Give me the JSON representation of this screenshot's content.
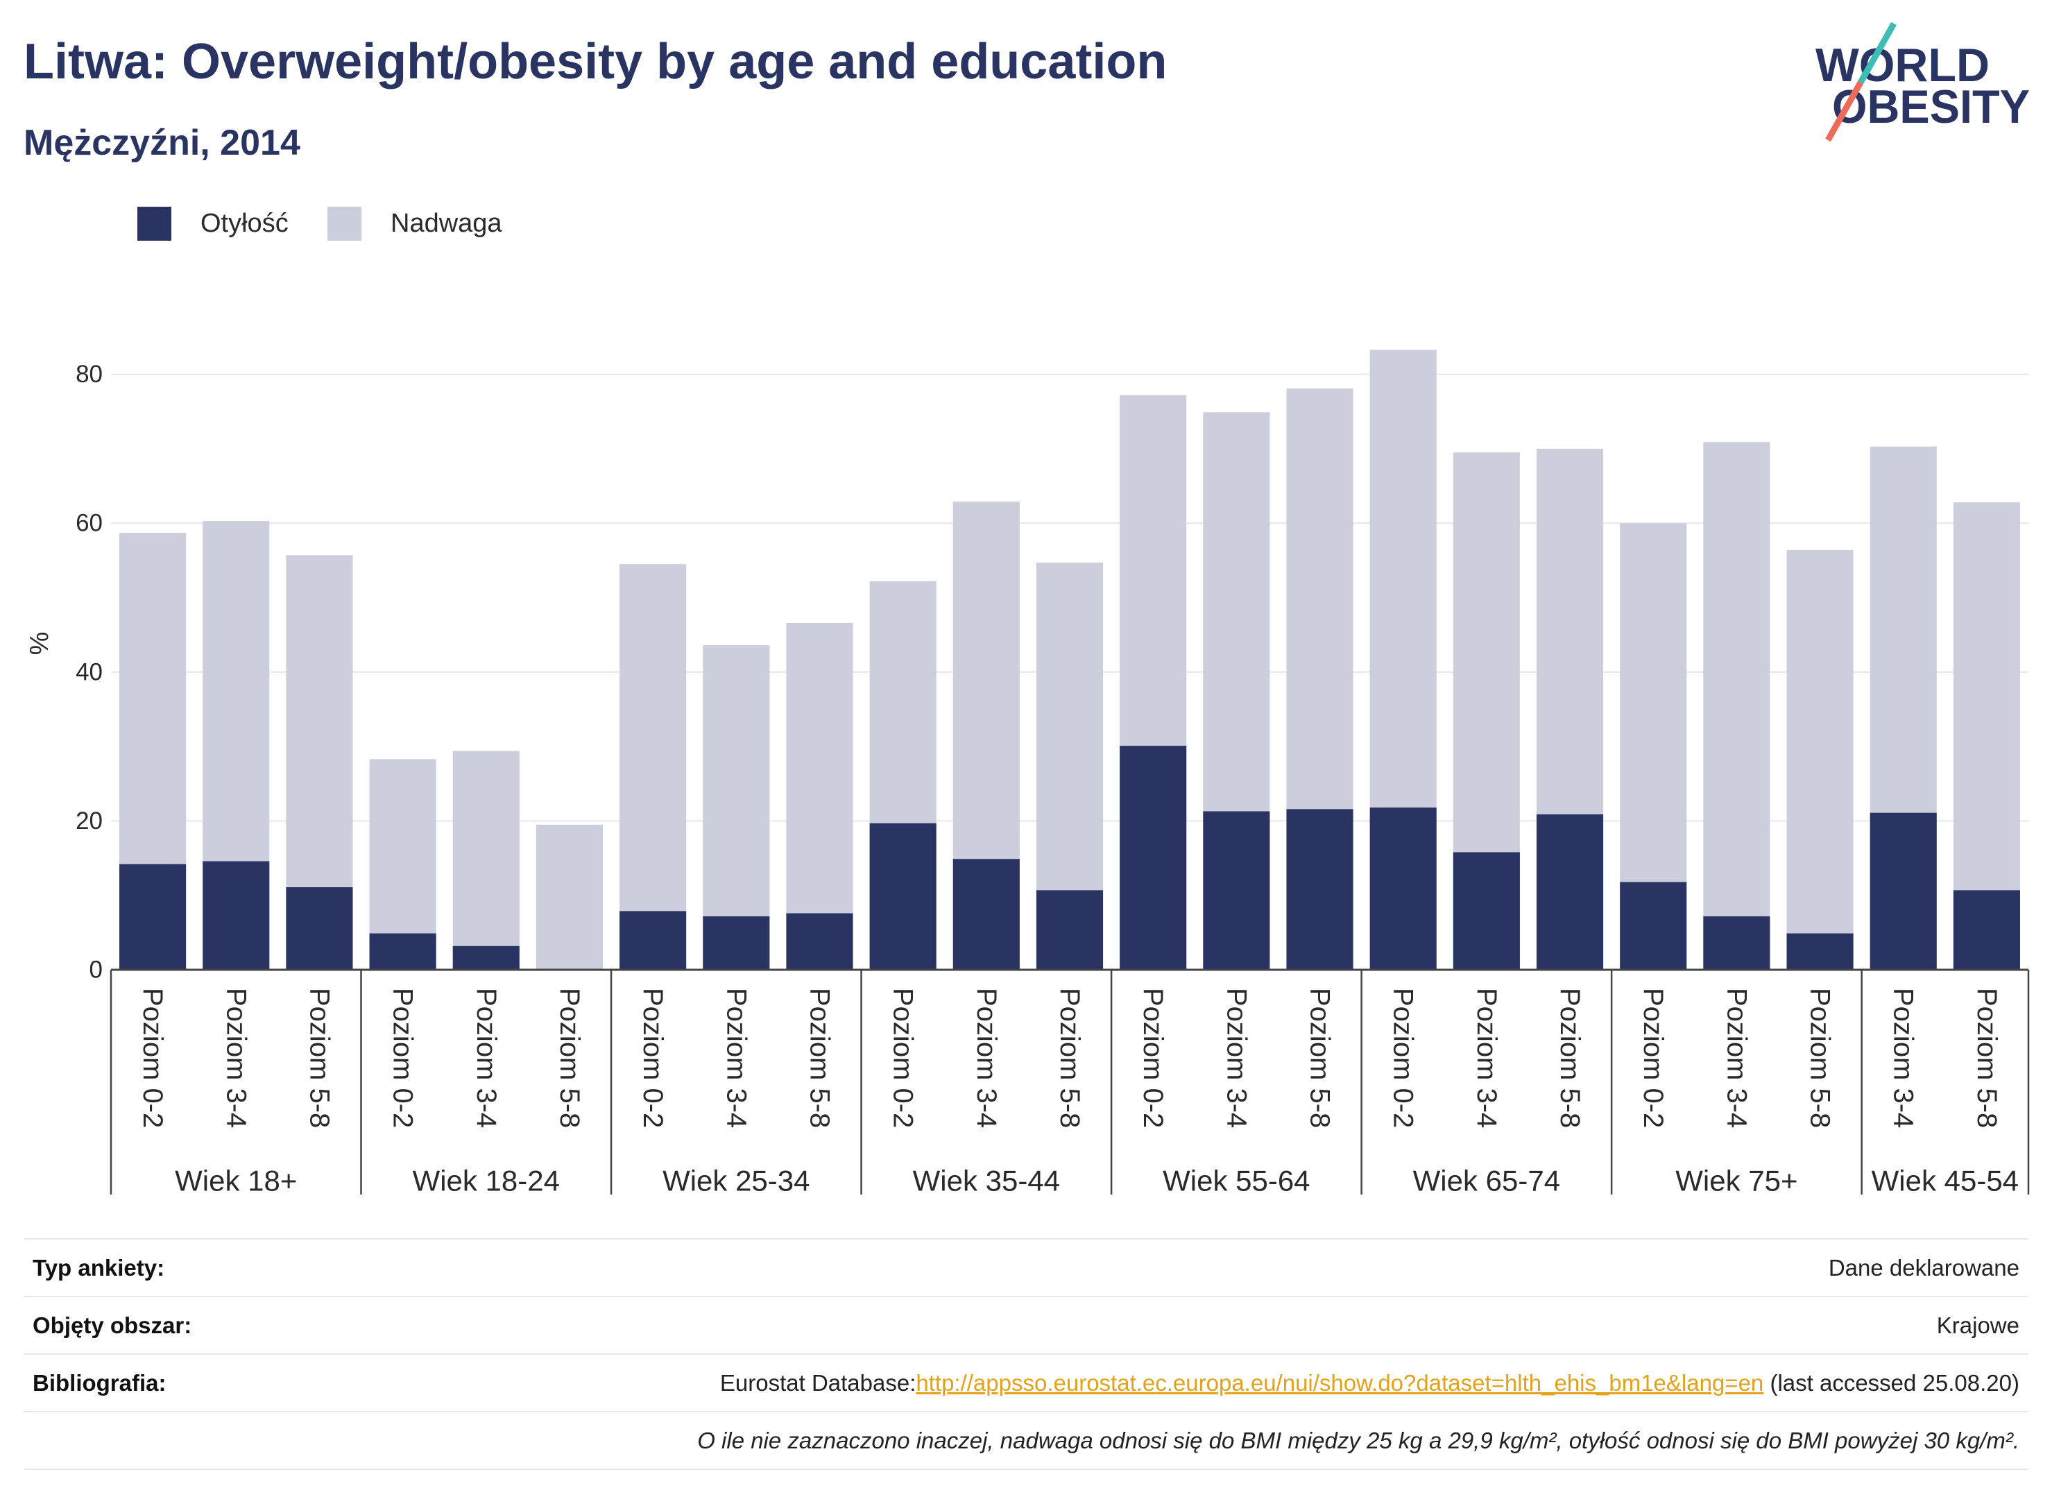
{
  "colors": {
    "primary": "#293462",
    "link": "#e3a21a",
    "logo_slash_top": "#3dbdb6",
    "logo_slash_bottom": "#ee6a5a"
  },
  "logo": {
    "line1": "WORLD",
    "line2": "OBESITY"
  },
  "chart_data": {
    "type": "bar",
    "barmode": "stack",
    "title": "Litwa: Overweight/obesity by age and education",
    "subtitle": "Mężczyźni, 2014",
    "ylabel": "%",
    "ylim": [
      0,
      87.7
    ],
    "yticks": [
      0,
      20,
      40,
      60,
      80
    ],
    "grid": true,
    "legend": "top-left",
    "groups": [
      {
        "label": "Wiek 18+",
        "levels": [
          "Poziom 0-2",
          "Poziom 3-4",
          "Poziom 5-8"
        ]
      },
      {
        "label": "Wiek 18-24",
        "levels": [
          "Poziom 0-2",
          "Poziom 3-4",
          "Poziom 5-8"
        ]
      },
      {
        "label": "Wiek 25-34",
        "levels": [
          "Poziom 0-2",
          "Poziom 3-4",
          "Poziom 5-8"
        ]
      },
      {
        "label": "Wiek 35-44",
        "levels": [
          "Poziom 0-2",
          "Poziom 3-4",
          "Poziom 5-8"
        ]
      },
      {
        "label": "Wiek 55-64",
        "levels": [
          "Poziom 0-2",
          "Poziom 3-4",
          "Poziom 5-8"
        ]
      },
      {
        "label": "Wiek 65-74",
        "levels": [
          "Poziom 0-2",
          "Poziom 3-4",
          "Poziom 5-8"
        ]
      },
      {
        "label": "Wiek 75+",
        "levels": [
          "Poziom 0-2",
          "Poziom 3-4",
          "Poziom 5-8"
        ]
      },
      {
        "label": "Wiek 45-54",
        "levels": [
          "Poziom 3-4",
          "Poziom 5-8"
        ]
      }
    ],
    "series": [
      {
        "name": "Otyłość",
        "color": "#293462",
        "values": [
          14.2,
          14.6,
          11.1,
          4.9,
          3.2,
          0,
          7.9,
          7.2,
          7.6,
          19.7,
          14.9,
          10.7,
          30.1,
          21.3,
          21.6,
          21.8,
          15.8,
          20.9,
          11.8,
          7.2,
          4.9,
          21.1,
          10.7
        ]
      },
      {
        "name": "Nadwaga",
        "color": "#cccfdb",
        "values": [
          44.5,
          45.7,
          44.6,
          23.4,
          26.2,
          19.5,
          46.6,
          36.4,
          39.0,
          32.5,
          48.0,
          44.0,
          47.1,
          53.6,
          56.5,
          61.5,
          53.7,
          49.1,
          48.2,
          63.7,
          51.5,
          49.2,
          52.1
        ]
      }
    ]
  },
  "info_table": {
    "rows": [
      {
        "label": "Typ ankiety:",
        "value": "Dane deklarowane"
      },
      {
        "label": "Objęty obszar:",
        "value": "Krajowe"
      },
      {
        "label": "Bibliografia:",
        "value_prefix": "Eurostat Database:",
        "link_text": "http://appsso.eurostat.ec.europa.eu/nui/show.do?dataset=hlth_ehis_bm1e&lang=en",
        "value_suffix": " (last accessed 25.08.20)"
      }
    ],
    "note": "O ile nie zaznaczono inaczej, nadwaga odnosi się do BMI między 25 kg a 29,9 kg/m², otyłość odnosi się do BMI powyżej 30 kg/m²."
  }
}
